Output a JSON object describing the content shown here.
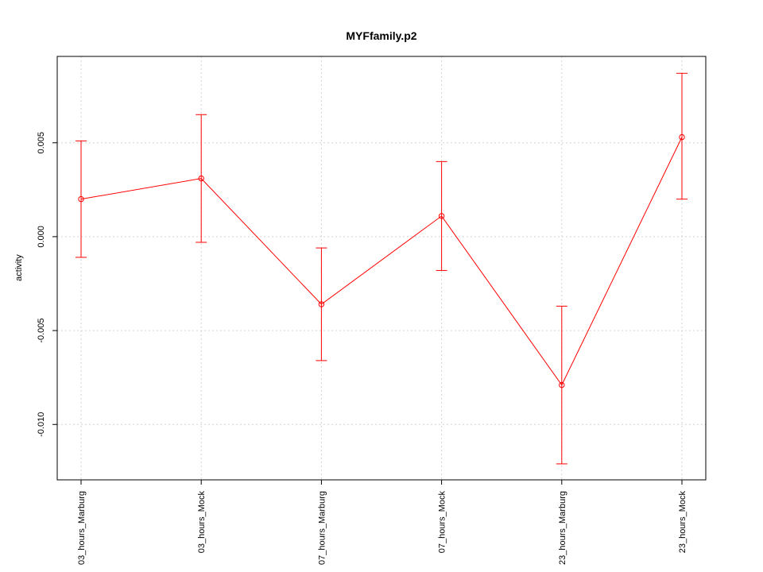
{
  "chart_data": {
    "type": "line",
    "title": "MYFfamily.p2",
    "xlabel": "",
    "ylabel": "activity",
    "categories": [
      "03_hours_Marburg",
      "03_hours_Mock",
      "07_hours_Marburg",
      "07_hours_Mock",
      "23_hours_Marburg",
      "23_hours_Mock"
    ],
    "series": [
      {
        "values": [
          0.002,
          0.0031,
          -0.0036,
          0.0011,
          -0.0079,
          0.0053
        ],
        "lower": [
          -0.0011,
          -0.0003,
          -0.0066,
          -0.0018,
          -0.0121,
          0.002
        ],
        "upper": [
          0.0051,
          0.0065,
          -0.0006,
          0.004,
          -0.0037,
          0.0087
        ]
      }
    ],
    "yticks": [
      -0.01,
      -0.005,
      0.0,
      0.005
    ],
    "ytick_labels": [
      "-0.010",
      "-0.005",
      "0.000",
      "0.005"
    ],
    "ylim": [
      -0.01295,
      0.0096
    ],
    "grid": true,
    "colors": {
      "series": "#ff0000",
      "grid": "#d3d3d3",
      "axis": "#000000"
    }
  }
}
